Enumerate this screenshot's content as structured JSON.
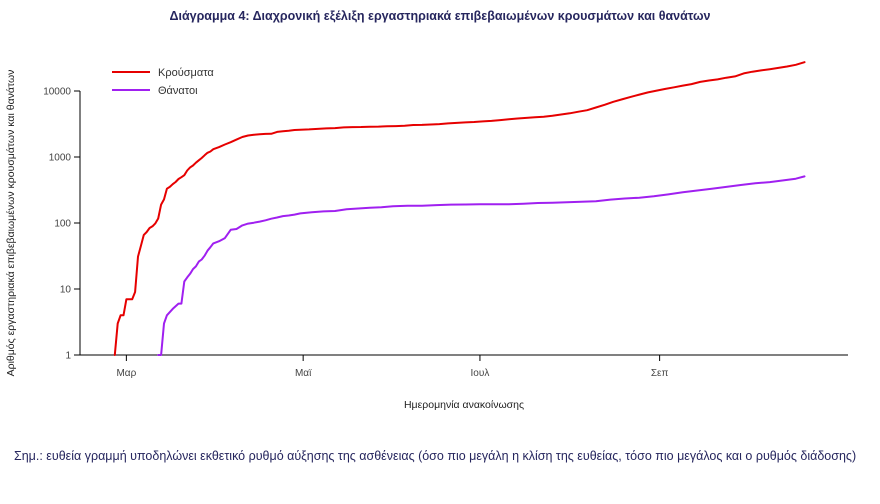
{
  "page": {
    "note": "Σημ.: ευθεία γραμμή υποδηλώνει εκθετικό ρυθμό αύξησης της ασθένειας (όσο πιο μεγάλη η κλίση της ευθείας, τόσο πιο μεγάλος και ο ρυθμός διάδοσης)"
  },
  "chart_data": {
    "type": "line",
    "title": "Διάγραμμα 4: Διαχρονική εξέλιξη εργαστηριακά επιβεβαιωμένων κρουσμάτων και θανάτων",
    "xlabel": "Ημερομηνία ανακοίνωσης",
    "ylabel": "Αριθμός εργαστηριακά επιβεβαιωμένων κρουσμάτων και θανάτων",
    "y_scale": "log10",
    "ylim": [
      1,
      40000
    ],
    "y_ticks": [
      1,
      10,
      100,
      1000,
      10000
    ],
    "x_unit": "day_of_year_2020",
    "xlim": [
      45,
      310
    ],
    "x_ticks": [
      {
        "pos": 61,
        "label": "Μαρ"
      },
      {
        "pos": 122,
        "label": "Μαϊ"
      },
      {
        "pos": 183,
        "label": "Ιουλ"
      },
      {
        "pos": 245,
        "label": "Σεπ"
      }
    ],
    "grid": false,
    "legend_position": "top-left",
    "series": [
      {
        "key": "cases",
        "name": "Κρούσματα",
        "color": "#e60000",
        "points": [
          [
            57,
            1
          ],
          [
            58,
            3
          ],
          [
            59,
            4
          ],
          [
            60,
            4
          ],
          [
            61,
            7
          ],
          [
            63,
            7
          ],
          [
            64,
            9
          ],
          [
            65,
            31
          ],
          [
            66,
            45
          ],
          [
            67,
            66
          ],
          [
            68,
            73
          ],
          [
            69,
            84
          ],
          [
            70,
            89
          ],
          [
            71,
            99
          ],
          [
            72,
            117
          ],
          [
            73,
            190
          ],
          [
            74,
            228
          ],
          [
            75,
            331
          ],
          [
            76,
            352
          ],
          [
            77,
            387
          ],
          [
            78,
            418
          ],
          [
            79,
            464
          ],
          [
            80,
            495
          ],
          [
            81,
            530
          ],
          [
            82,
            624
          ],
          [
            83,
            695
          ],
          [
            84,
            743
          ],
          [
            85,
            821
          ],
          [
            86,
            892
          ],
          [
            87,
            966
          ],
          [
            88,
            1061
          ],
          [
            89,
            1156
          ],
          [
            90,
            1212
          ],
          [
            91,
            1314
          ],
          [
            93,
            1415
          ],
          [
            95,
            1544
          ],
          [
            97,
            1673
          ],
          [
            99,
            1832
          ],
          [
            101,
            2011
          ],
          [
            103,
            2114
          ],
          [
            105,
            2170
          ],
          [
            107,
            2207
          ],
          [
            109,
            2235
          ],
          [
            111,
            2245
          ],
          [
            113,
            2401
          ],
          [
            115,
            2463
          ],
          [
            117,
            2506
          ],
          [
            119,
            2566
          ],
          [
            121,
            2591
          ],
          [
            124,
            2620
          ],
          [
            127,
            2663
          ],
          [
            130,
            2710
          ],
          [
            133,
            2744
          ],
          [
            136,
            2810
          ],
          [
            139,
            2834
          ],
          [
            142,
            2853
          ],
          [
            145,
            2876
          ],
          [
            148,
            2892
          ],
          [
            151,
            2915
          ],
          [
            154,
            2937
          ],
          [
            157,
            2965
          ],
          [
            160,
            3049
          ],
          [
            163,
            3068
          ],
          [
            166,
            3112
          ],
          [
            169,
            3148
          ],
          [
            172,
            3227
          ],
          [
            175,
            3287
          ],
          [
            178,
            3343
          ],
          [
            181,
            3390
          ],
          [
            184,
            3458
          ],
          [
            187,
            3519
          ],
          [
            190,
            3622
          ],
          [
            193,
            3732
          ],
          [
            196,
            3826
          ],
          [
            199,
            3910
          ],
          [
            202,
            4007
          ],
          [
            205,
            4077
          ],
          [
            208,
            4227
          ],
          [
            211,
            4401
          ],
          [
            214,
            4587
          ],
          [
            217,
            4855
          ],
          [
            220,
            5123
          ],
          [
            223,
            5623
          ],
          [
            226,
            6177
          ],
          [
            229,
            6858
          ],
          [
            232,
            7472
          ],
          [
            235,
            8138
          ],
          [
            238,
            8819
          ],
          [
            241,
            9531
          ],
          [
            244,
            10134
          ],
          [
            247,
            10757
          ],
          [
            250,
            11386
          ],
          [
            253,
            12080
          ],
          [
            256,
            12734
          ],
          [
            259,
            13730
          ],
          [
            262,
            14400
          ],
          [
            265,
            14978
          ],
          [
            268,
            15928
          ],
          [
            271,
            16627
          ],
          [
            274,
            18475
          ],
          [
            277,
            19613
          ],
          [
            280,
            20541
          ],
          [
            283,
            21381
          ],
          [
            286,
            22358
          ],
          [
            289,
            23495
          ],
          [
            292,
            24932
          ],
          [
            295,
            27334
          ]
        ]
      },
      {
        "key": "deaths",
        "name": "Θάνατοι",
        "color": "#a020f0",
        "points": [
          [
            72,
            1
          ],
          [
            73,
            1
          ],
          [
            74,
            3
          ],
          [
            75,
            4
          ],
          [
            77,
            5
          ],
          [
            79,
            6
          ],
          [
            80,
            6
          ],
          [
            81,
            13
          ],
          [
            82,
            15
          ],
          [
            83,
            17
          ],
          [
            84,
            20
          ],
          [
            85,
            22
          ],
          [
            86,
            26
          ],
          [
            87,
            28
          ],
          [
            88,
            32
          ],
          [
            89,
            38
          ],
          [
            90,
            43
          ],
          [
            91,
            49
          ],
          [
            93,
            53
          ],
          [
            95,
            59
          ],
          [
            97,
            79
          ],
          [
            99,
            81
          ],
          [
            101,
            92
          ],
          [
            103,
            98
          ],
          [
            105,
            101
          ],
          [
            107,
            105
          ],
          [
            109,
            110
          ],
          [
            111,
            116
          ],
          [
            113,
            121
          ],
          [
            115,
            127
          ],
          [
            117,
            130
          ],
          [
            119,
            134
          ],
          [
            121,
            140
          ],
          [
            125,
            146
          ],
          [
            129,
            150
          ],
          [
            133,
            152
          ],
          [
            137,
            162
          ],
          [
            141,
            166
          ],
          [
            145,
            170
          ],
          [
            149,
            173
          ],
          [
            153,
            180
          ],
          [
            158,
            182
          ],
          [
            163,
            183
          ],
          [
            168,
            187
          ],
          [
            173,
            190
          ],
          [
            178,
            191
          ],
          [
            183,
            192
          ],
          [
            188,
            193
          ],
          [
            193,
            193
          ],
          [
            198,
            196
          ],
          [
            203,
            201
          ],
          [
            208,
            203
          ],
          [
            213,
            206
          ],
          [
            218,
            210
          ],
          [
            223,
            213
          ],
          [
            228,
            226
          ],
          [
            233,
            235
          ],
          [
            238,
            242
          ],
          [
            243,
            254
          ],
          [
            248,
            271
          ],
          [
            253,
            293
          ],
          [
            258,
            311
          ],
          [
            263,
            331
          ],
          [
            268,
            352
          ],
          [
            273,
            376
          ],
          [
            278,
            399
          ],
          [
            283,
            417
          ],
          [
            288,
            444
          ],
          [
            292,
            469
          ],
          [
            295,
            509
          ]
        ]
      }
    ]
  }
}
